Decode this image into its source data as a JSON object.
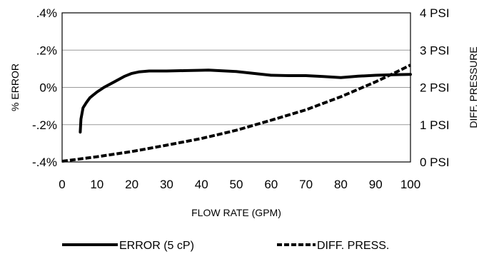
{
  "chart_data": {
    "type": "line",
    "title": "",
    "xlabel": "FLOW RATE (GPM)",
    "ylabel_left": "% ERROR",
    "ylabel_right": "DIFF. PRESSURE",
    "xlim": [
      0,
      100
    ],
    "ylim_left": [
      -0.4,
      0.4
    ],
    "ylim_right": [
      0,
      4
    ],
    "x_ticks": [
      0,
      10,
      20,
      30,
      40,
      50,
      60,
      70,
      80,
      90,
      100
    ],
    "x_tick_labels": [
      "0",
      "10",
      "20",
      "30",
      "40",
      "50",
      "60",
      "70",
      "80",
      "90",
      "100"
    ],
    "y_left_ticks": [
      0.4,
      0.2,
      0,
      -0.2,
      -0.4
    ],
    "y_left_tick_labels": [
      ".4%",
      ".2%",
      "0%",
      "-.2%",
      "-.4%"
    ],
    "y_right_ticks": [
      4,
      3,
      2,
      1,
      0
    ],
    "y_right_tick_labels": [
      "4 PSI",
      "3 PSI",
      "2 PSI",
      "1 PSI",
      "0 PSI"
    ],
    "grid": "horizontal",
    "legend_position": "bottom",
    "series": [
      {
        "name": "ERROR (5 cP)",
        "axis": "left",
        "style": "solid",
        "color": "#000000",
        "x": [
          5.2,
          5.4,
          6,
          7,
          8,
          10,
          12,
          15,
          18,
          20,
          22,
          25,
          30,
          35,
          40,
          42,
          45,
          50,
          55,
          60,
          65,
          70,
          75,
          80,
          85,
          90,
          95,
          100
        ],
        "y": [
          -0.24,
          -0.17,
          -0.11,
          -0.08,
          -0.055,
          -0.025,
          0,
          0.03,
          0.06,
          0.075,
          0.083,
          0.088,
          0.088,
          0.09,
          0.092,
          0.093,
          0.09,
          0.085,
          0.075,
          0.065,
          0.063,
          0.063,
          0.058,
          0.053,
          0.06,
          0.065,
          0.068,
          0.07
        ]
      },
      {
        "name": "DIFF. PRESS.",
        "axis": "right",
        "style": "dashed",
        "color": "#000000",
        "x": [
          0,
          10,
          20,
          30,
          40,
          50,
          60,
          70,
          80,
          90,
          95,
          100
        ],
        "y": [
          0.02,
          0.14,
          0.28,
          0.45,
          0.63,
          0.85,
          1.12,
          1.4,
          1.75,
          2.15,
          2.37,
          2.6
        ]
      }
    ]
  }
}
